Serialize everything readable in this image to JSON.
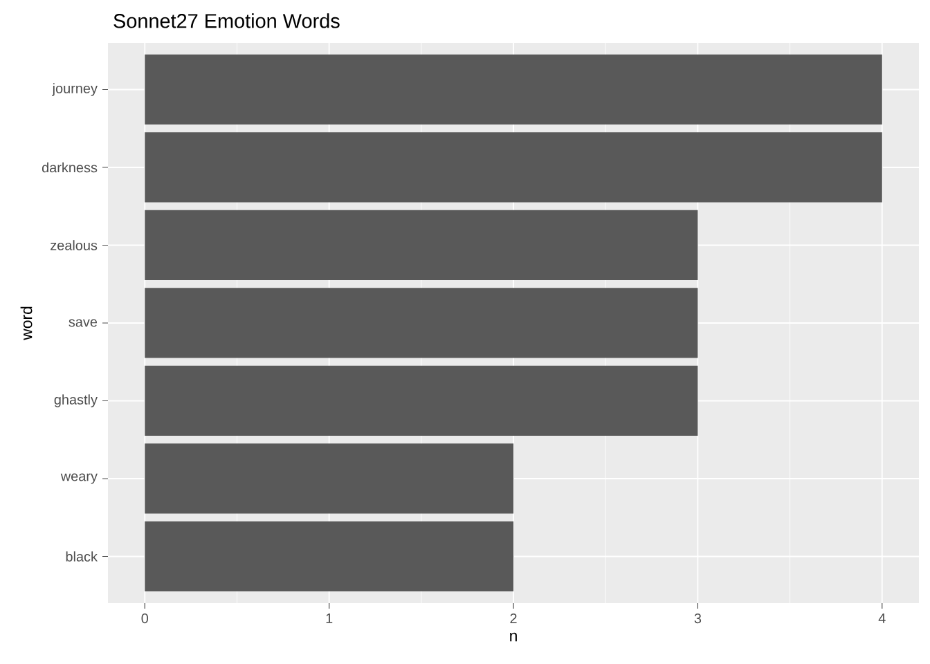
{
  "chart_data": {
    "type": "bar",
    "orientation": "horizontal",
    "title": "Sonnet27 Emotion Words",
    "xlabel": "n",
    "ylabel": "word",
    "categories": [
      "journey",
      "darkness",
      "zealous",
      "save",
      "ghastly",
      "weary",
      "black"
    ],
    "values": [
      4,
      4,
      3,
      3,
      3,
      2,
      2
    ],
    "color": "#595959",
    "xlim": [
      -0.2,
      4.2
    ],
    "xticks": [
      0,
      1,
      2,
      3,
      4
    ],
    "grid": true
  }
}
